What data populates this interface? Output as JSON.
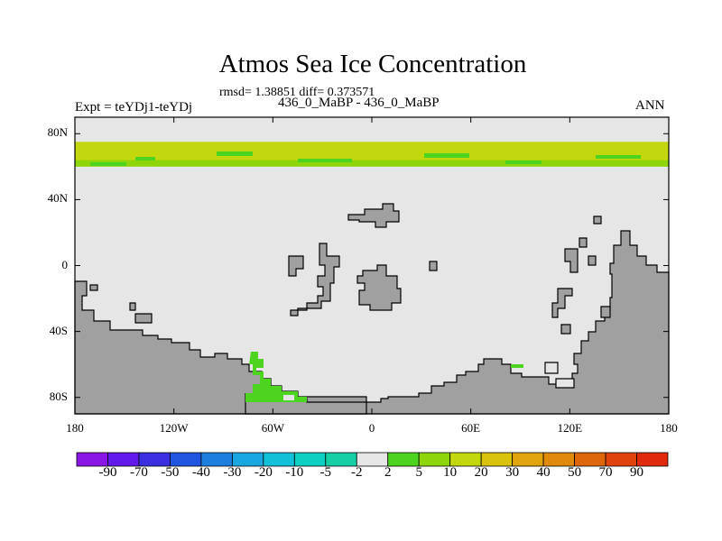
{
  "chart_data": {
    "type": "heatmap",
    "title": "Atmos Sea Ice Concentration",
    "stats_line": "rmsd= 1.38851 diff= 0.373571",
    "left_label": "Expt = teYDj1-teYDj",
    "center_label": "436_0_MaBP - 436_0_MaBP",
    "right_label": "ANN",
    "xlim": [
      -180,
      180
    ],
    "ylim": [
      -90,
      90
    ],
    "x_ticks": [
      {
        "value": -180,
        "label": "180"
      },
      {
        "value": -120,
        "label": "120W"
      },
      {
        "value": -60,
        "label": "60W"
      },
      {
        "value": 0,
        "label": "0"
      },
      {
        "value": 60,
        "label": "60E"
      },
      {
        "value": 120,
        "label": "120E"
      },
      {
        "value": 180,
        "label": "180"
      }
    ],
    "y_ticks": [
      {
        "value": 80,
        "label": "80N"
      },
      {
        "value": 40,
        "label": "40N"
      },
      {
        "value": 0,
        "label": "0"
      },
      {
        "value": -40,
        "label": "40S"
      },
      {
        "value": -80,
        "label": "80S"
      }
    ],
    "colorbar": {
      "labels": [
        "-90",
        "-70",
        "-50",
        "-40",
        "-30",
        "-20",
        "-10",
        "-5",
        "-2",
        "2",
        "5",
        "10",
        "20",
        "30",
        "40",
        "50",
        "70",
        "90"
      ],
      "colors": [
        "#8a17e6",
        "#6019e8",
        "#3a2ee0",
        "#1f55e0",
        "#1c7fe0",
        "#1aa6df",
        "#10c1d7",
        "#0ed0c2",
        "#16cfa6",
        "#e6e6e6",
        "#4cd41f",
        "#8ed60b",
        "#c2d80c",
        "#d8c20c",
        "#e0a40c",
        "#e08a0c",
        "#e0660c",
        "#e0440c",
        "#df2a0c"
      ]
    },
    "regions": [
      {
        "name": "arctic band lower",
        "category": "5",
        "lon": [
          -180,
          180
        ],
        "lat": [
          60,
          75
        ]
      },
      {
        "name": "arctic band upper",
        "category": "10",
        "lon": [
          -180,
          180
        ],
        "lat": [
          64,
          75
        ]
      },
      {
        "name": "weddell sea patch",
        "category": "5",
        "lon": [
          -77,
          -35
        ],
        "lat": [
          -82,
          -52
        ]
      }
    ],
    "land_color": "#a0a0a0",
    "ocean_color": "#e6e6e6"
  }
}
